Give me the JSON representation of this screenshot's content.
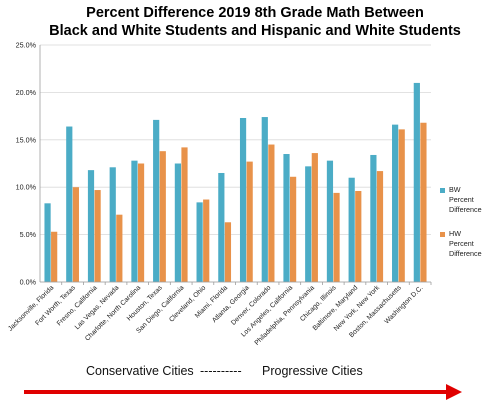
{
  "chart_data": {
    "type": "bar",
    "title_lines": [
      "Percent Difference 2019 8th Grade Math Between",
      "Black and White Students and Hispanic and White Students"
    ],
    "categories": [
      "Jacksonville, Florida",
      "Fort Worth, Texas",
      "Fresno, California",
      "Las Vegas, Nevada",
      "Charlotte, North Carolina",
      "Houston, Texas",
      "San Diego, California",
      "Cleveland, Ohio",
      "Miami, Florida",
      "Atlanta, Georgia",
      "Denver, Colorado",
      "Los Angeles, California",
      "Philadelphia, Pennsylvania",
      "Chicago, Illinois",
      "Baltimore, Maryland",
      "New York, New York",
      "Boston, Massachusetts",
      "Washington D.C."
    ],
    "series": [
      {
        "name": "BW Percent Difference",
        "name_lines": [
          "BW",
          "Percent",
          "Difference"
        ],
        "color": "#4bacc6",
        "values": [
          8.3,
          16.4,
          11.8,
          12.1,
          12.8,
          17.1,
          12.5,
          8.4,
          11.5,
          17.3,
          17.4,
          13.5,
          12.2,
          12.8,
          11.0,
          13.4,
          16.6,
          21.0
        ]
      },
      {
        "name": "HW Percent Difference",
        "name_lines": [
          "HW",
          "Percent",
          "Difference"
        ],
        "color": "#e8924a",
        "values": [
          5.3,
          10.0,
          9.7,
          7.1,
          12.5,
          13.8,
          14.2,
          8.7,
          6.3,
          12.7,
          14.5,
          11.1,
          13.6,
          9.4,
          9.6,
          11.7,
          16.1,
          16.8
        ]
      }
    ],
    "ylim": [
      0,
      25
    ],
    "yticks": [
      "0.0%",
      "5.0%",
      "10.0%",
      "15.0%",
      "20.0%",
      "25.0%"
    ],
    "grid": true,
    "legend_position": "right",
    "annotation": {
      "left_text": "Conservative Cities",
      "dashes": "----------",
      "right_text": "Progressive Cities",
      "arrow_color": "#e00000"
    }
  }
}
